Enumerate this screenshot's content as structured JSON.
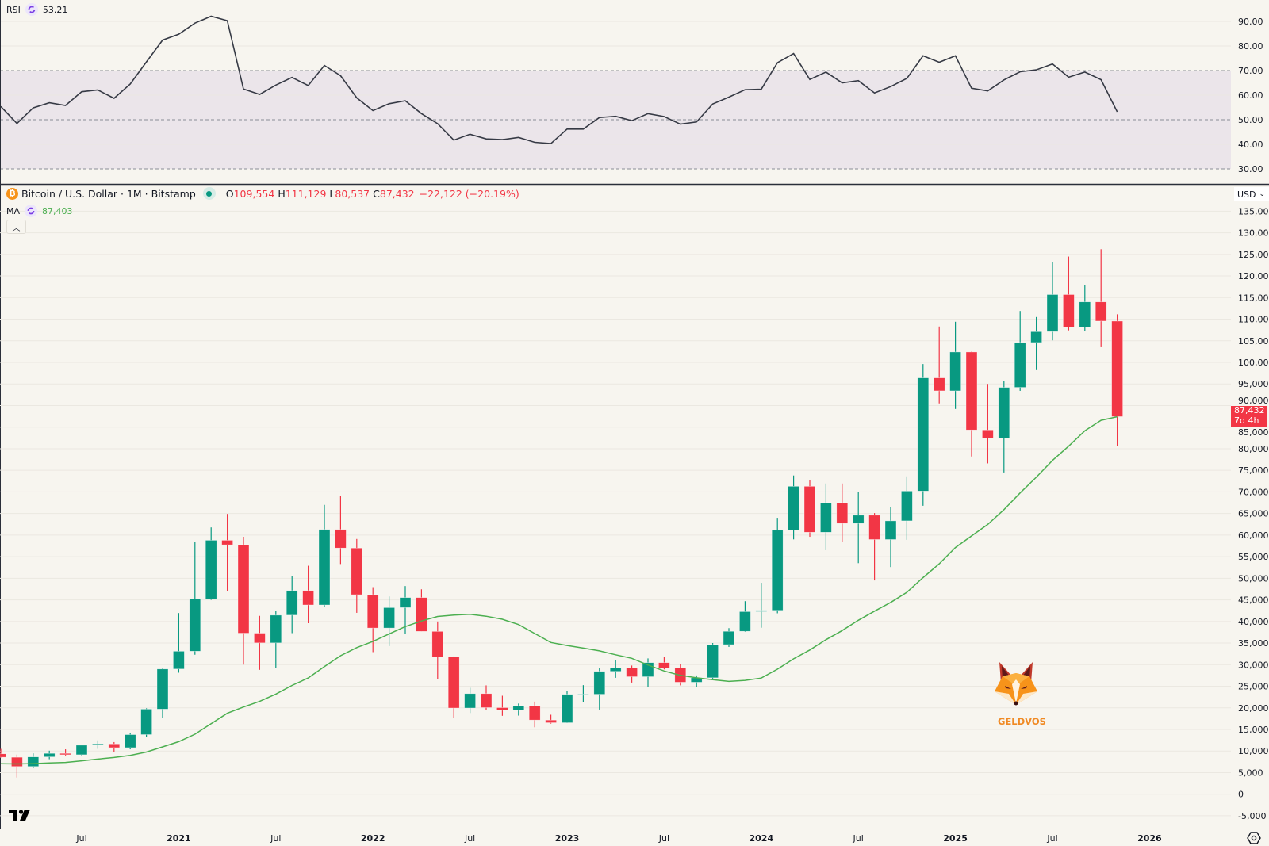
{
  "rsi_legend": {
    "label": "RSI",
    "value": "53.21"
  },
  "symbol": {
    "title": "Bitcoin / U.S. Dollar · 1M · Bitstamp",
    "open_label": "O",
    "open": "109,554",
    "high_label": "H",
    "high": "111,129",
    "low_label": "L",
    "low": "80,537",
    "close_label": "C",
    "close": "87,432",
    "change": "−22,122 (−20.19%)"
  },
  "ma_legend": {
    "label": "MA",
    "value": "87,403"
  },
  "currency": {
    "label": "USD",
    "icon": "chevron-down-icon"
  },
  "collapse": {
    "icon": "chevron-up-icon"
  },
  "last_price": {
    "value": "87,432",
    "countdown": "7d 4h"
  },
  "watermark": {
    "text": "GELDVOS"
  },
  "colors": {
    "background": "#f7f5ef",
    "up": "#089981",
    "down": "#f23645",
    "ma": "#4caf50",
    "rsi_line": "#363a45",
    "rsi_band": "#ebe5ea",
    "grid": "#ebe8e1"
  },
  "chart_data": [
    {
      "type": "candlestick",
      "dates": [
        "2020-02",
        "2020-03",
        "2020-04",
        "2020-05",
        "2020-06",
        "2020-07",
        "2020-08",
        "2020-09",
        "2020-10",
        "2020-11",
        "2020-12",
        "2021-01",
        "2021-02",
        "2021-03",
        "2021-04",
        "2021-05",
        "2021-06",
        "2021-07",
        "2021-08",
        "2021-09",
        "2021-10",
        "2021-11",
        "2021-12",
        "2022-01",
        "2022-02",
        "2022-03",
        "2022-04",
        "2022-05",
        "2022-06",
        "2022-07",
        "2022-08",
        "2022-09",
        "2022-10",
        "2022-11",
        "2022-12",
        "2023-01",
        "2023-02",
        "2023-03",
        "2023-04",
        "2023-05",
        "2023-06",
        "2023-07",
        "2023-08",
        "2023-09",
        "2023-10",
        "2023-11",
        "2023-12",
        "2024-01",
        "2024-02",
        "2024-03",
        "2024-04",
        "2024-05",
        "2024-06",
        "2024-07",
        "2024-08",
        "2024-09",
        "2024-10",
        "2024-11",
        "2024-12",
        "2025-01",
        "2025-02",
        "2025-03",
        "2025-04",
        "2025-05",
        "2025-06",
        "2025-07",
        "2025-08",
        "2025-09",
        "2025-10",
        "2025-11"
      ],
      "ohlc": [
        [
          9350,
          10500,
          8450,
          8550
        ],
        [
          8550,
          9180,
          3850,
          6420
        ],
        [
          6420,
          9460,
          6150,
          8630
        ],
        [
          8630,
          10080,
          8100,
          9450
        ],
        [
          9450,
          10400,
          8900,
          9140
        ],
        [
          9140,
          11450,
          8980,
          11350
        ],
        [
          11350,
          12470,
          10500,
          11650
        ],
        [
          11650,
          12070,
          9850,
          10780
        ],
        [
          10780,
          14100,
          10400,
          13800
        ],
        [
          13800,
          19880,
          13200,
          19700
        ],
        [
          19700,
          29300,
          17600,
          28990
        ],
        [
          28990,
          41950,
          28130,
          33110
        ],
        [
          33110,
          58350,
          32300,
          45240
        ],
        [
          45240,
          61780,
          45000,
          58800
        ],
        [
          58800,
          64900,
          47000,
          57750
        ],
        [
          57750,
          59600,
          30000,
          37300
        ],
        [
          37300,
          41300,
          28800,
          35040
        ],
        [
          35040,
          42400,
          29300,
          41460
        ],
        [
          41460,
          50500,
          37300,
          47150
        ],
        [
          47150,
          52900,
          39600,
          43820
        ],
        [
          43820,
          67000,
          43300,
          61300
        ],
        [
          61300,
          69000,
          53300,
          57000
        ],
        [
          57000,
          59100,
          42000,
          46200
        ],
        [
          46200,
          47950,
          32900,
          38480
        ],
        [
          38480,
          45800,
          34300,
          43200
        ],
        [
          43200,
          48200,
          37200,
          45540
        ],
        [
          45540,
          47450,
          37700,
          37700
        ],
        [
          37700,
          40000,
          26700,
          31800
        ],
        [
          31800,
          31900,
          17600,
          19950
        ],
        [
          19950,
          24650,
          18800,
          23300
        ],
        [
          23300,
          25200,
          19550,
          20050
        ],
        [
          20050,
          22800,
          18150,
          19430
        ],
        [
          19430,
          21000,
          18200,
          20500
        ],
        [
          20500,
          21450,
          15500,
          17170
        ],
        [
          17170,
          18400,
          16350,
          16550
        ],
        [
          16550,
          23950,
          16500,
          23130
        ],
        [
          23130,
          25250,
          21400,
          23150
        ],
        [
          23150,
          29200,
          19600,
          28450
        ],
        [
          28450,
          31000,
          26950,
          29250
        ],
        [
          29250,
          29800,
          25850,
          27200
        ],
        [
          27200,
          31450,
          24800,
          30480
        ],
        [
          30480,
          31850,
          28900,
          29230
        ],
        [
          29230,
          30200,
          25200,
          25930
        ],
        [
          25930,
          27500,
          24900,
          26960
        ],
        [
          26960,
          35000,
          26550,
          34640
        ],
        [
          34640,
          38450,
          34100,
          37720
        ],
        [
          37720,
          44700,
          37600,
          42280
        ],
        [
          42280,
          48950,
          38550,
          42580
        ],
        [
          42580,
          64000,
          41900,
          61130
        ],
        [
          61130,
          73800,
          59000,
          71300
        ],
        [
          71300,
          72800,
          59600,
          60650
        ],
        [
          60650,
          71950,
          56500,
          67500
        ],
        [
          67500,
          71950,
          58400,
          62700
        ],
        [
          62700,
          70000,
          53500,
          64600
        ],
        [
          64600,
          65100,
          49500,
          58970
        ],
        [
          58970,
          66500,
          52600,
          63300
        ],
        [
          63300,
          73600,
          58900,
          70200
        ],
        [
          70200,
          99600,
          66800,
          96400
        ],
        [
          96400,
          108300,
          90500,
          93400
        ],
        [
          93400,
          109400,
          89200,
          102400
        ],
        [
          102400,
          102500,
          78200,
          84350
        ],
        [
          84350,
          95000,
          76600,
          82500
        ],
        [
          82500,
          95700,
          74500,
          94200
        ],
        [
          94200,
          111900,
          93400,
          104600
        ],
        [
          104600,
          110500,
          98200,
          107100
        ],
        [
          107100,
          123200,
          105100,
          115700
        ],
        [
          115700,
          124500,
          107400,
          108200
        ],
        [
          108200,
          117900,
          107300,
          114000
        ],
        [
          114000,
          126200,
          103500,
          109554
        ],
        [
          109554,
          111129,
          80537,
          87432
        ]
      ],
      "ma": {
        "name": "MA",
        "values": [
          7069,
          7004,
          7084,
          7225,
          7364,
          7729,
          8125,
          8491,
          8990,
          9770,
          10954,
          12181,
          13902,
          16338,
          18746,
          20196,
          21490,
          23186,
          25183,
          26907,
          29544,
          32073,
          33952,
          35403,
          37106,
          38816,
          40118,
          41169,
          41477,
          41657,
          41210,
          40526,
          39289,
          37207,
          35147,
          34439,
          33844,
          33194,
          32299,
          31468,
          29927,
          28538,
          27525,
          26949,
          26521,
          26130,
          26359,
          26898,
          28957,
          31357,
          33387,
          35790,
          37900,
          40272,
          42393,
          44401,
          46754,
          50151,
          53359,
          57119,
          59812,
          62476,
          65889,
          69771,
          73394,
          77293,
          80589,
          84160,
          86581,
          87403
        ]
      },
      "y_ticks": [
        "-5,000",
        "0",
        "5,000",
        "10,000",
        "15,000",
        "20,000",
        "25,000",
        "30,000",
        "35,000",
        "40,000",
        "45,000",
        "50,000",
        "55,000",
        "60,000",
        "65,000",
        "70,000",
        "75,000",
        "80,000",
        "85,000",
        "90,000",
        "95,000",
        "100,000",
        "105,000",
        "110,000",
        "115,000",
        "120,000",
        "125,000",
        "130,000",
        "135,000"
      ],
      "x_ticks": [
        {
          "label": "Jul",
          "date": "2020-07",
          "major": false
        },
        {
          "label": "2021",
          "date": "2021-01",
          "major": true
        },
        {
          "label": "Jul",
          "date": "2021-07",
          "major": false
        },
        {
          "label": "2022",
          "date": "2022-01",
          "major": true
        },
        {
          "label": "Jul",
          "date": "2022-07",
          "major": false
        },
        {
          "label": "2023",
          "date": "2023-01",
          "major": true
        },
        {
          "label": "Jul",
          "date": "2023-07",
          "major": false
        },
        {
          "label": "2024",
          "date": "2024-01",
          "major": true
        },
        {
          "label": "Jul",
          "date": "2024-07",
          "major": false
        },
        {
          "label": "2025",
          "date": "2025-01",
          "major": true
        },
        {
          "label": "Jul",
          "date": "2025-07",
          "major": false
        },
        {
          "label": "2026",
          "date": "2026-01",
          "major": true
        }
      ],
      "ylim": [
        -8000,
        138000
      ],
      "grid": "horizontal"
    },
    {
      "type": "line",
      "name": "RSI",
      "values": [
        55.4,
        48.5,
        54.8,
        56.9,
        55.8,
        61.4,
        62.1,
        58.7,
        64.5,
        73.5,
        82.4,
        84.8,
        89.3,
        92.1,
        90.3,
        62.5,
        60.3,
        64.1,
        67.2,
        63.9,
        72.1,
        67.9,
        58.9,
        53.7,
        56.5,
        57.7,
        52.5,
        48.4,
        41.7,
        44.1,
        42.2,
        41.9,
        42.8,
        40.8,
        40.3,
        46.2,
        46.2,
        50.9,
        51.4,
        49.6,
        52.5,
        51.3,
        48.2,
        49.1,
        56.4,
        59.2,
        62.2,
        62.4,
        73.2,
        76.9,
        66.4,
        69.4,
        65.0,
        65.9,
        60.9,
        63.5,
        66.8,
        76.0,
        73.4,
        76.0,
        62.8,
        61.7,
        66.2,
        69.5,
        70.3,
        72.7,
        67.3,
        69.4,
        66.3,
        53.21
      ],
      "y_ticks": [
        "30.00",
        "40.00",
        "50.00",
        "60.00",
        "70.00",
        "80.00",
        "90.00"
      ],
      "bands": {
        "upper": 70,
        "middle": 50,
        "lower": 30
      },
      "ylim": [
        25,
        96
      ]
    }
  ]
}
